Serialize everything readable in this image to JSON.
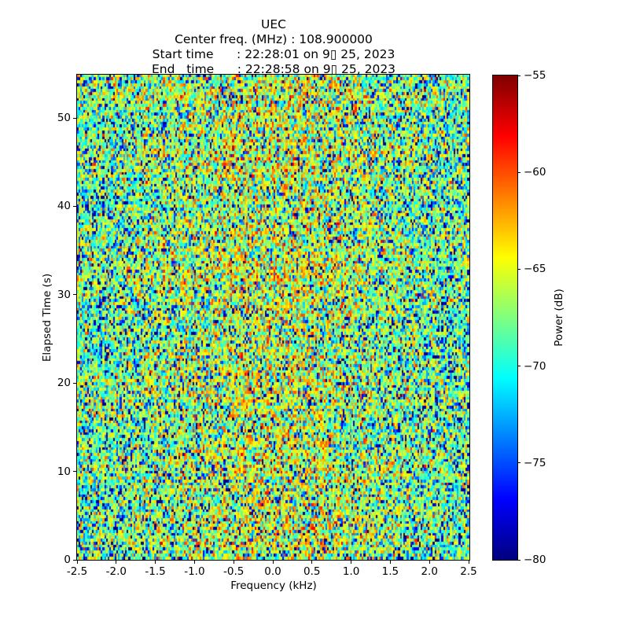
{
  "chart_data": {
    "type": "heatmap",
    "title_lines": [
      "UEC",
      "Center freq. (MHz) : 108.900000",
      "Start time      : 22:28:01 on 9▯ 25, 2023",
      "End   time      : 22:28:58 on 9▯ 25, 2023"
    ],
    "xlabel": "Frequency (kHz)",
    "ylabel": "Elapsed Time (s)",
    "xlim": [
      -2.5,
      2.5
    ],
    "ylim": [
      0,
      54.9
    ],
    "xticks": [
      -2.5,
      -2.0,
      -1.5,
      -1.0,
      -0.5,
      0.0,
      0.5,
      1.0,
      1.5,
      2.0,
      2.5
    ],
    "xtick_labels": [
      "-2.5",
      "-2.0",
      "-1.5",
      "-1.0",
      "-0.5",
      "0.0",
      "0.5",
      "1.0",
      "1.5",
      "2.0",
      "2.5"
    ],
    "yticks": [
      0,
      10,
      20,
      30,
      40,
      50
    ],
    "ytick_labels": [
      "0",
      "10",
      "20",
      "30",
      "40",
      "50"
    ],
    "grid": false,
    "colorbar": {
      "label": "Power (dB)",
      "ticks": [
        -55,
        -60,
        -65,
        -70,
        -75,
        -80
      ],
      "tick_labels": [
        "−55",
        "−60",
        "−65",
        "−70",
        "−75",
        "−80"
      ],
      "clim": [
        -80,
        -55
      ],
      "colormap": "jet",
      "position": "right"
    },
    "heatmap": {
      "description": "random RF noise speckle, no coherent signal; slightly hotter around center frequency, cooler toward band edges",
      "cols": 227,
      "rows": 164,
      "seed": 7,
      "base_db": -67.5,
      "center_bump_db": 3.0,
      "bump_sigma_khz": 1.2,
      "row_wobble_db": 0.5,
      "value_range_db": [
        -80,
        -55
      ],
      "distribution": "exponential-power (Rayleigh noise in dB)"
    }
  }
}
